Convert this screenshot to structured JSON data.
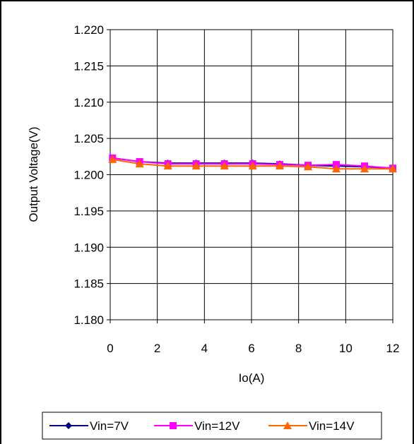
{
  "chart_data": {
    "type": "line",
    "title": "",
    "xlabel": "Io(A)",
    "ylabel": "Output Voltage(V)",
    "xlim": [
      0,
      12
    ],
    "ylim": [
      1.18,
      1.22
    ],
    "xticks": [
      "0",
      "2",
      "4",
      "6",
      "8",
      "10",
      "12"
    ],
    "yticks": [
      "1.220",
      "1.215",
      "1.210",
      "1.205",
      "1.200",
      "1.195",
      "1.190",
      "1.185",
      "1.180"
    ],
    "grid": true,
    "legend_position": "bottom",
    "x": [
      0.1,
      1.25,
      2.45,
      3.65,
      4.85,
      6.05,
      7.2,
      8.4,
      9.6,
      10.8,
      12.0
    ],
    "series": [
      {
        "name": "Vin=7V",
        "color": "#000080",
        "marker": "diamond",
        "values": [
          1.2023,
          1.2018,
          1.2016,
          1.2016,
          1.2016,
          1.2016,
          1.2015,
          1.2013,
          1.2012,
          1.2011,
          1.2009
        ]
      },
      {
        "name": "Vin=12V",
        "color": "#FF00FF",
        "marker": "square",
        "values": [
          1.2023,
          1.2018,
          1.2015,
          1.2015,
          1.2015,
          1.2015,
          1.2014,
          1.2013,
          1.2014,
          1.2012,
          1.2009
        ]
      },
      {
        "name": "Vin=14V",
        "color": "#FF6600",
        "marker": "triangle",
        "values": [
          1.2021,
          1.2015,
          1.2012,
          1.2012,
          1.2012,
          1.2012,
          1.2012,
          1.2011,
          1.2008,
          1.2008,
          1.2008
        ]
      }
    ]
  }
}
